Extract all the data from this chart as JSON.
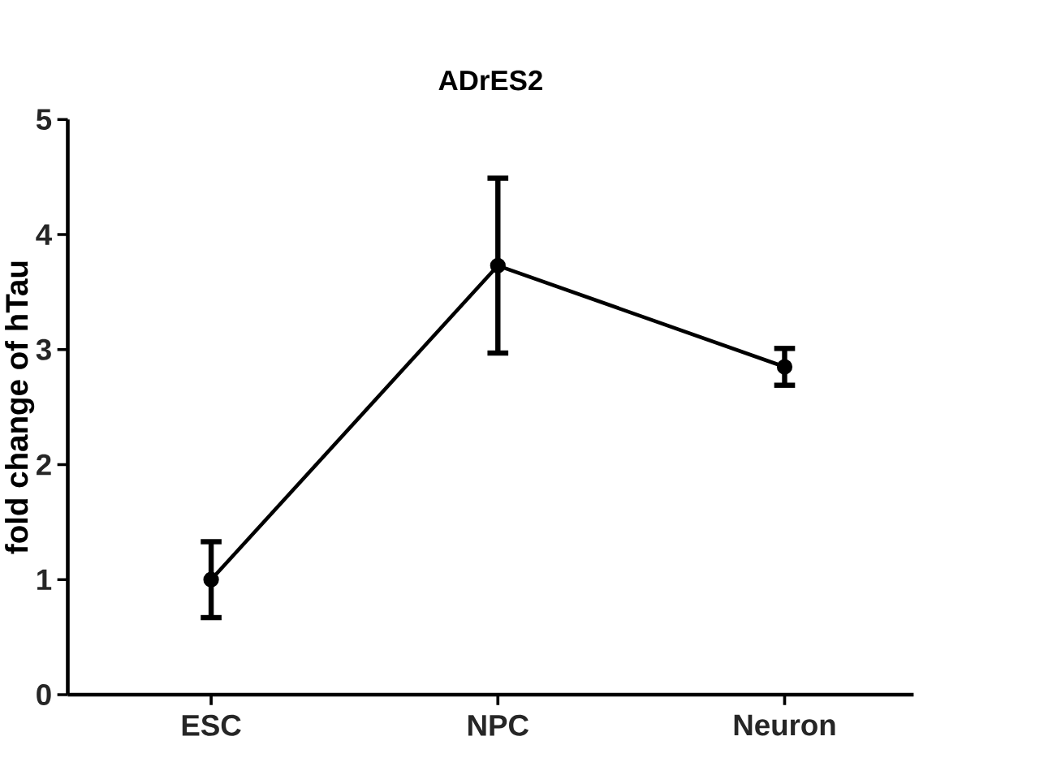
{
  "chart_data": {
    "type": "line",
    "title": "ADrES2",
    "ylabel": "fold change of hTau",
    "categories": [
      "ESC",
      "NPC",
      "Neuron"
    ],
    "values": [
      1.0,
      3.73,
      2.85
    ],
    "errors": [
      0.33,
      0.76,
      0.16
    ],
    "color": "#000000",
    "marker": "circle",
    "line_style": "solid",
    "ylim": [
      0,
      5
    ],
    "yticks": [
      0,
      1,
      2,
      3,
      4,
      5
    ]
  }
}
